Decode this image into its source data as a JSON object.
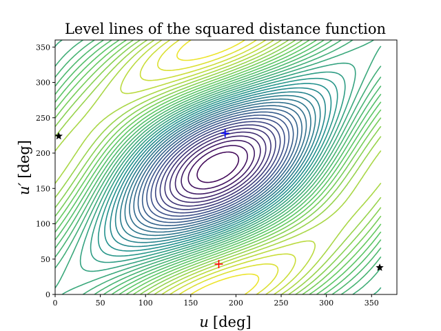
{
  "chart_data": {
    "type": "contour",
    "title": "Level lines of the squared distance function",
    "xlabel": {
      "symbol": "u",
      "unit": "[deg]"
    },
    "ylabel": {
      "symbol": "u′",
      "unit": "[deg]"
    },
    "xlim": [
      0,
      378
    ],
    "ylim": [
      0,
      360
    ],
    "xticks": [
      0,
      50,
      100,
      150,
      200,
      250,
      300,
      350
    ],
    "yticks": [
      0,
      50,
      100,
      150,
      200,
      250,
      300,
      350
    ],
    "grid": false,
    "colormap": [
      "#440154",
      "#3b528b",
      "#21908d",
      "#5dc863",
      "#fde725"
    ],
    "contour_data_range": {
      "x": [
        0,
        360
      ],
      "y": [
        0,
        360
      ]
    },
    "markers": [
      {
        "name": "red-plus",
        "marker": "+",
        "color": "#ff0000",
        "x": 181,
        "y": 43
      },
      {
        "name": "blue-plus",
        "marker": "+",
        "color": "#0000ff",
        "x": 188,
        "y": 228
      },
      {
        "name": "star-left",
        "marker": "star",
        "color": "#000000",
        "x": 4,
        "y": 224
      },
      {
        "name": "star-right",
        "marker": "star",
        "color": "#000000",
        "x": 359,
        "y": 38
      }
    ]
  }
}
